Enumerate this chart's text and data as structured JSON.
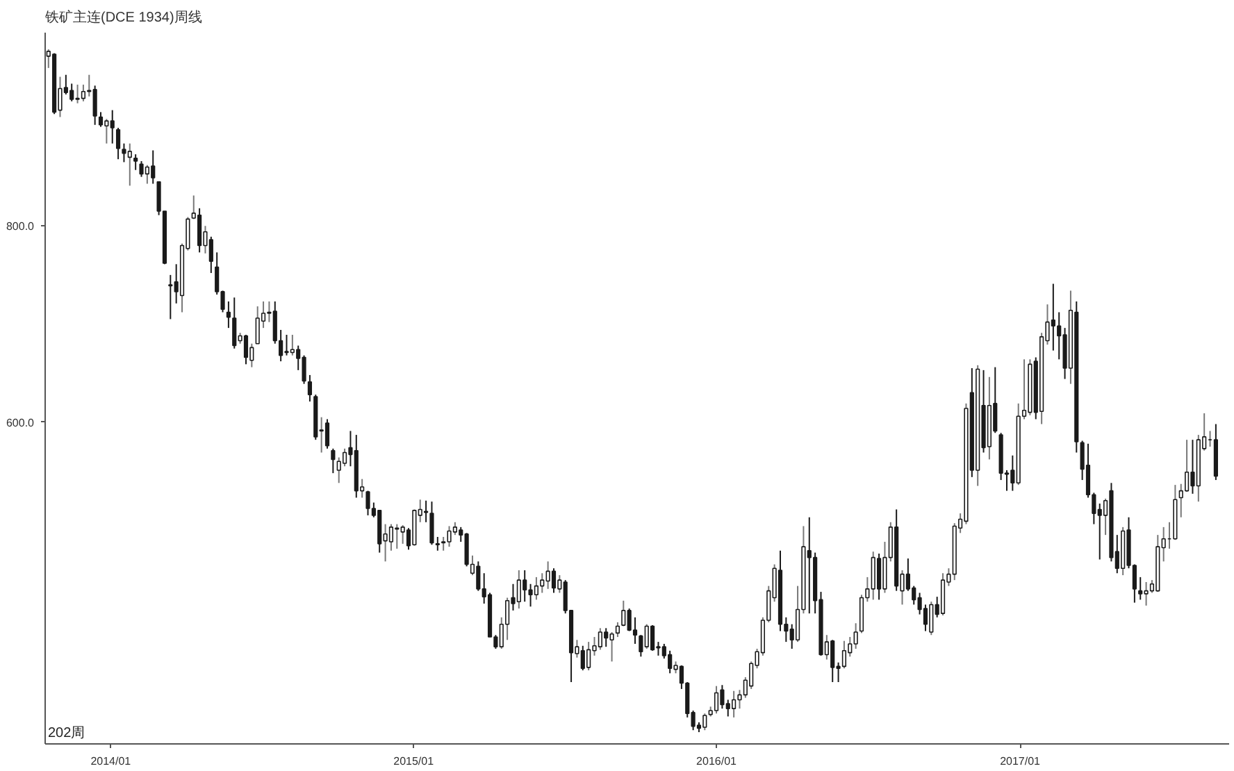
{
  "chart_data": {
    "type": "candlestick",
    "title": "铁矿主连(DCE 1934)周线",
    "annotations": [
      "202周"
    ],
    "x": [
      "2013-10-18",
      "2013-10-25",
      "2013-11-01",
      "2013-11-08",
      "2013-11-15",
      "2013-11-22",
      "2013-11-29",
      "2013-12-06",
      "2013-12-13",
      "2013-12-20",
      "2013-12-27",
      "2014-01-03",
      "2014-01-10",
      "2014-01-17",
      "2014-01-24",
      "2014-01-31",
      "2014-02-07",
      "2014-02-14",
      "2014-02-21",
      "2014-02-28",
      "2014-03-07",
      "2014-03-14",
      "2014-03-21",
      "2014-03-28",
      "2014-04-04",
      "2014-04-11",
      "2014-04-18",
      "2014-04-25",
      "2014-05-02",
      "2014-05-09",
      "2014-05-16",
      "2014-05-23",
      "2014-05-30",
      "2014-06-06",
      "2014-06-13",
      "2014-06-20",
      "2014-06-27",
      "2014-07-04",
      "2014-07-11",
      "2014-07-18",
      "2014-07-25",
      "2014-08-01",
      "2014-08-08",
      "2014-08-15",
      "2014-08-22",
      "2014-08-29",
      "2014-09-05",
      "2014-09-12",
      "2014-09-19",
      "2014-09-26",
      "2014-10-03",
      "2014-10-10",
      "2014-10-17",
      "2014-10-24",
      "2014-10-31",
      "2014-11-07",
      "2014-11-14",
      "2014-11-21",
      "2014-11-28",
      "2014-12-05",
      "2014-12-12",
      "2014-12-19",
      "2014-12-26",
      "2015-01-02",
      "2015-01-09",
      "2015-01-16",
      "2015-01-23",
      "2015-01-30",
      "2015-02-06",
      "2015-02-13",
      "2015-02-20",
      "2015-02-27",
      "2015-03-06",
      "2015-03-13",
      "2015-03-20",
      "2015-03-27",
      "2015-04-03",
      "2015-04-10",
      "2015-04-17",
      "2015-04-24",
      "2015-05-01",
      "2015-05-08",
      "2015-05-15",
      "2015-05-22",
      "2015-05-29",
      "2015-06-05",
      "2015-06-12",
      "2015-06-19",
      "2015-06-26",
      "2015-07-03",
      "2015-07-10",
      "2015-07-17",
      "2015-07-24",
      "2015-07-31",
      "2015-08-07",
      "2015-08-14",
      "2015-08-21",
      "2015-08-28",
      "2015-09-04",
      "2015-09-11",
      "2015-09-18",
      "2015-09-25",
      "2015-10-02",
      "2015-10-09",
      "2015-10-16",
      "2015-10-23",
      "2015-10-30",
      "2015-11-06",
      "2015-11-13",
      "2015-11-20",
      "2015-11-27",
      "2015-12-04",
      "2015-12-11",
      "2015-12-18",
      "2015-12-25",
      "2016-01-01",
      "2016-01-08",
      "2016-01-15",
      "2016-01-22",
      "2016-01-29",
      "2016-02-05",
      "2016-02-12",
      "2016-02-19",
      "2016-02-26",
      "2016-03-04",
      "2016-03-11",
      "2016-03-18",
      "2016-03-25",
      "2016-04-01",
      "2016-04-08",
      "2016-04-15",
      "2016-04-22",
      "2016-04-29",
      "2016-05-06",
      "2016-05-13",
      "2016-05-20",
      "2016-05-27",
      "2016-06-03",
      "2016-06-10",
      "2016-06-17",
      "2016-06-24",
      "2016-07-01",
      "2016-07-08",
      "2016-07-15",
      "2016-07-22",
      "2016-07-29",
      "2016-08-05",
      "2016-08-12",
      "2016-08-19",
      "2016-08-26",
      "2016-09-02",
      "2016-09-09",
      "2016-09-16",
      "2016-09-23",
      "2016-09-30",
      "2016-10-07",
      "2016-10-14",
      "2016-10-21",
      "2016-10-28",
      "2016-11-04",
      "2016-11-11",
      "2016-11-18",
      "2016-11-25",
      "2016-12-02",
      "2016-12-09",
      "2016-12-16",
      "2016-12-23",
      "2016-12-30",
      "2017-01-06",
      "2017-01-13",
      "2017-01-20",
      "2017-01-27",
      "2017-02-03",
      "2017-02-10",
      "2017-02-17",
      "2017-02-24",
      "2017-03-03",
      "2017-03-10",
      "2017-03-17",
      "2017-03-24",
      "2017-03-31",
      "2017-04-07",
      "2017-04-14",
      "2017-04-21",
      "2017-04-28",
      "2017-05-05",
      "2017-05-12",
      "2017-05-19",
      "2017-05-26",
      "2017-06-02",
      "2017-06-09",
      "2017-06-16",
      "2017-06-23",
      "2017-06-30",
      "2017-07-07",
      "2017-07-14",
      "2017-07-21",
      "2017-07-28",
      "2017-08-04",
      "2017-08-11",
      "2017-08-18",
      "2017-08-25"
    ],
    "ohlc": [
      [
        973,
        980,
        961,
        978
      ],
      [
        975,
        976,
        914,
        916
      ],
      [
        918,
        952,
        911,
        940
      ],
      [
        941,
        954,
        934,
        936
      ],
      [
        938,
        945,
        927,
        929
      ],
      [
        929,
        944,
        925,
        930
      ],
      [
        930,
        944,
        927,
        937
      ],
      [
        937,
        954,
        932,
        938
      ],
      [
        939,
        943,
        903,
        912
      ],
      [
        911,
        916,
        901,
        903
      ],
      [
        902,
        909,
        884,
        907
      ],
      [
        907,
        918,
        884,
        900
      ],
      [
        898,
        900,
        868,
        879
      ],
      [
        878,
        884,
        865,
        874
      ],
      [
        870,
        884,
        841,
        876
      ],
      [
        869,
        873,
        857,
        866
      ],
      [
        863,
        866,
        850,
        853
      ],
      [
        853,
        862,
        843,
        860
      ],
      [
        861,
        877,
        843,
        849
      ],
      [
        845,
        845,
        811,
        815
      ],
      [
        815,
        815,
        761,
        762
      ],
      [
        740,
        750,
        705,
        739
      ],
      [
        743,
        761,
        721,
        733
      ],
      [
        729,
        782,
        712,
        780
      ],
      [
        777,
        809,
        775,
        807
      ],
      [
        808,
        831,
        807,
        813
      ],
      [
        811,
        818,
        773,
        780
      ],
      [
        780,
        800,
        772,
        794
      ],
      [
        786,
        789,
        752,
        764
      ],
      [
        758,
        773,
        730,
        733
      ],
      [
        733,
        734,
        712,
        715
      ],
      [
        712,
        723,
        696,
        707
      ],
      [
        706,
        727,
        675,
        678
      ],
      [
        683,
        691,
        680,
        688
      ],
      [
        688,
        689,
        659,
        666
      ],
      [
        663,
        680,
        656,
        676
      ],
      [
        680,
        718,
        680,
        706
      ],
      [
        703,
        723,
        696,
        711
      ],
      [
        711,
        723,
        702,
        712
      ],
      [
        713,
        723,
        680,
        683
      ],
      [
        683,
        694,
        662,
        668
      ],
      [
        672,
        689,
        668,
        671
      ],
      [
        671,
        689,
        668,
        674
      ],
      [
        674,
        678,
        653,
        665
      ],
      [
        666,
        668,
        639,
        642
      ],
      [
        641,
        648,
        621,
        628
      ],
      [
        626,
        628,
        582,
        585
      ],
      [
        591,
        605,
        569,
        592
      ],
      [
        599,
        603,
        573,
        576
      ],
      [
        571,
        573,
        548,
        562
      ],
      [
        551,
        564,
        538,
        560
      ],
      [
        558,
        573,
        555,
        569
      ],
      [
        574,
        591,
        555,
        567
      ],
      [
        571,
        587,
        523,
        530
      ],
      [
        530,
        542,
        523,
        534
      ],
      [
        529,
        530,
        505,
        512
      ],
      [
        512,
        518,
        503,
        505
      ],
      [
        510,
        510,
        467,
        476
      ],
      [
        479,
        496,
        458,
        486
      ],
      [
        478,
        496,
        469,
        493
      ],
      [
        491,
        496,
        471,
        492
      ],
      [
        488,
        495,
        476,
        493
      ],
      [
        490,
        492,
        470,
        474
      ],
      [
        475,
        511,
        474,
        510
      ],
      [
        505,
        521,
        498,
        511
      ],
      [
        509,
        520,
        498,
        508
      ],
      [
        507,
        519,
        475,
        477
      ],
      [
        476,
        483,
        469,
        475
      ],
      [
        477,
        483,
        469,
        478
      ],
      [
        478,
        494,
        473,
        489
      ],
      [
        488,
        498,
        485,
        493
      ],
      [
        490,
        493,
        478,
        485
      ],
      [
        486,
        487,
        453,
        455
      ],
      [
        446,
        464,
        444,
        455
      ],
      [
        453,
        458,
        428,
        430
      ],
      [
        430,
        446,
        415,
        422
      ],
      [
        424,
        426,
        381,
        381
      ],
      [
        381,
        383,
        369,
        371
      ],
      [
        371,
        401,
        369,
        394
      ],
      [
        394,
        421,
        378,
        418
      ],
      [
        421,
        435,
        408,
        415
      ],
      [
        417,
        449,
        410,
        439
      ],
      [
        439,
        449,
        417,
        429
      ],
      [
        429,
        435,
        412,
        424
      ],
      [
        424,
        442,
        419,
        433
      ],
      [
        433,
        446,
        426,
        439
      ],
      [
        438,
        458,
        430,
        448
      ],
      [
        448,
        451,
        426,
        431
      ],
      [
        430,
        444,
        426,
        439
      ],
      [
        437,
        439,
        405,
        408
      ],
      [
        408,
        408,
        335,
        365
      ],
      [
        364,
        378,
        360,
        371
      ],
      [
        367,
        372,
        347,
        349
      ],
      [
        350,
        376,
        347,
        368
      ],
      [
        367,
        381,
        362,
        372
      ],
      [
        371,
        390,
        368,
        386
      ],
      [
        386,
        390,
        371,
        380
      ],
      [
        378,
        386,
        356,
        384
      ],
      [
        385,
        396,
        381,
        392
      ],
      [
        393,
        418,
        392,
        408
      ],
      [
        408,
        410,
        387,
        388
      ],
      [
        388,
        401,
        374,
        383
      ],
      [
        382,
        383,
        361,
        366
      ],
      [
        371,
        394,
        369,
        392
      ],
      [
        392,
        393,
        367,
        368
      ],
      [
        371,
        376,
        362,
        370
      ],
      [
        371,
        374,
        359,
        362
      ],
      [
        363,
        367,
        344,
        349
      ],
      [
        348,
        356,
        344,
        352
      ],
      [
        351,
        352,
        328,
        334
      ],
      [
        334,
        335,
        299,
        303
      ],
      [
        304,
        306,
        286,
        290
      ],
      [
        291,
        294,
        284,
        288
      ],
      [
        289,
        303,
        286,
        301
      ],
      [
        302,
        310,
        300,
        306
      ],
      [
        306,
        331,
        303,
        324
      ],
      [
        327,
        332,
        308,
        312
      ],
      [
        313,
        317,
        300,
        308
      ],
      [
        308,
        326,
        299,
        317
      ],
      [
        317,
        327,
        308,
        322
      ],
      [
        322,
        340,
        319,
        337
      ],
      [
        331,
        356,
        328,
        354
      ],
      [
        352,
        369,
        349,
        366
      ],
      [
        365,
        401,
        362,
        398
      ],
      [
        398,
        433,
        396,
        428
      ],
      [
        421,
        455,
        417,
        451
      ],
      [
        449,
        469,
        387,
        394
      ],
      [
        394,
        401,
        376,
        387
      ],
      [
        389,
        394,
        369,
        378
      ],
      [
        378,
        433,
        376,
        409
      ],
      [
        409,
        494,
        405,
        473
      ],
      [
        469,
        503,
        405,
        462
      ],
      [
        462,
        467,
        405,
        418
      ],
      [
        419,
        427,
        362,
        363
      ],
      [
        363,
        383,
        358,
        376
      ],
      [
        377,
        378,
        335,
        350
      ],
      [
        351,
        355,
        335,
        349
      ],
      [
        351,
        377,
        349,
        367
      ],
      [
        365,
        381,
        361,
        374
      ],
      [
        374,
        395,
        369,
        386
      ],
      [
        387,
        424,
        385,
        421
      ],
      [
        421,
        442,
        417,
        430
      ],
      [
        430,
        468,
        419,
        462
      ],
      [
        461,
        466,
        419,
        430
      ],
      [
        430,
        478,
        426,
        462
      ],
      [
        462,
        498,
        458,
        493
      ],
      [
        493,
        511,
        428,
        433
      ],
      [
        428,
        449,
        414,
        445
      ],
      [
        445,
        461,
        428,
        430
      ],
      [
        431,
        433,
        414,
        419
      ],
      [
        421,
        426,
        404,
        409
      ],
      [
        410,
        414,
        387,
        394
      ],
      [
        386,
        417,
        383,
        414
      ],
      [
        414,
        422,
        401,
        404
      ],
      [
        405,
        446,
        403,
        439
      ],
      [
        437,
        451,
        433,
        445
      ],
      [
        445,
        497,
        439,
        494
      ],
      [
        492,
        507,
        487,
        501
      ],
      [
        499,
        619,
        496,
        614
      ],
      [
        630,
        655,
        544,
        551
      ],
      [
        551,
        658,
        535,
        654
      ],
      [
        617,
        653,
        569,
        574
      ],
      [
        575,
        646,
        562,
        617
      ],
      [
        619,
        656,
        589,
        591
      ],
      [
        587,
        589,
        541,
        548
      ],
      [
        548,
        551,
        530,
        547
      ],
      [
        551,
        566,
        530,
        538
      ],
      [
        538,
        619,
        536,
        606
      ],
      [
        606,
        664,
        603,
        612
      ],
      [
        610,
        664,
        607,
        659
      ],
      [
        662,
        666,
        603,
        610
      ],
      [
        611,
        691,
        598,
        687
      ],
      [
        683,
        720,
        679,
        702
      ],
      [
        704,
        741,
        673,
        698
      ],
      [
        698,
        712,
        664,
        688
      ],
      [
        689,
        696,
        644,
        655
      ],
      [
        655,
        734,
        639,
        714
      ],
      [
        712,
        723,
        569,
        580
      ],
      [
        579,
        581,
        541,
        552
      ],
      [
        556,
        578,
        523,
        526
      ],
      [
        526,
        528,
        496,
        507
      ],
      [
        511,
        517,
        460,
        505
      ],
      [
        505,
        522,
        485,
        520
      ],
      [
        530,
        538,
        458,
        462
      ],
      [
        468,
        485,
        446,
        451
      ],
      [
        451,
        493,
        444,
        489
      ],
      [
        490,
        503,
        451,
        454
      ],
      [
        454,
        455,
        416,
        430
      ],
      [
        428,
        442,
        419,
        425
      ],
      [
        425,
        437,
        413,
        428
      ],
      [
        428,
        439,
        426,
        435
      ],
      [
        428,
        485,
        427,
        473
      ],
      [
        472,
        493,
        458,
        481
      ],
      [
        481,
        498,
        471,
        481
      ],
      [
        481,
        536,
        480,
        521
      ],
      [
        523,
        537,
        503,
        530
      ],
      [
        530,
        582,
        529,
        549
      ],
      [
        549,
        582,
        527,
        535
      ],
      [
        535,
        587,
        519,
        582
      ],
      [
        573,
        609,
        571,
        585
      ],
      [
        582,
        591,
        575,
        582
      ],
      [
        582,
        598,
        541,
        545
      ]
    ],
    "xlim": [
      "2013-10-14",
      "2017-09-10"
    ],
    "xticks": [
      {
        "value": "2014-01-01",
        "label": "2014/01"
      },
      {
        "value": "2015-01-01",
        "label": "2015/01"
      },
      {
        "value": "2016-01-01",
        "label": "2016/01"
      },
      {
        "value": "2017-01-01",
        "label": "2017/01"
      }
    ],
    "ylim": [
      272,
      997
    ],
    "yticks": [
      {
        "value": 800,
        "label": "800.0"
      },
      {
        "value": 600,
        "label": "600.0"
      }
    ]
  }
}
